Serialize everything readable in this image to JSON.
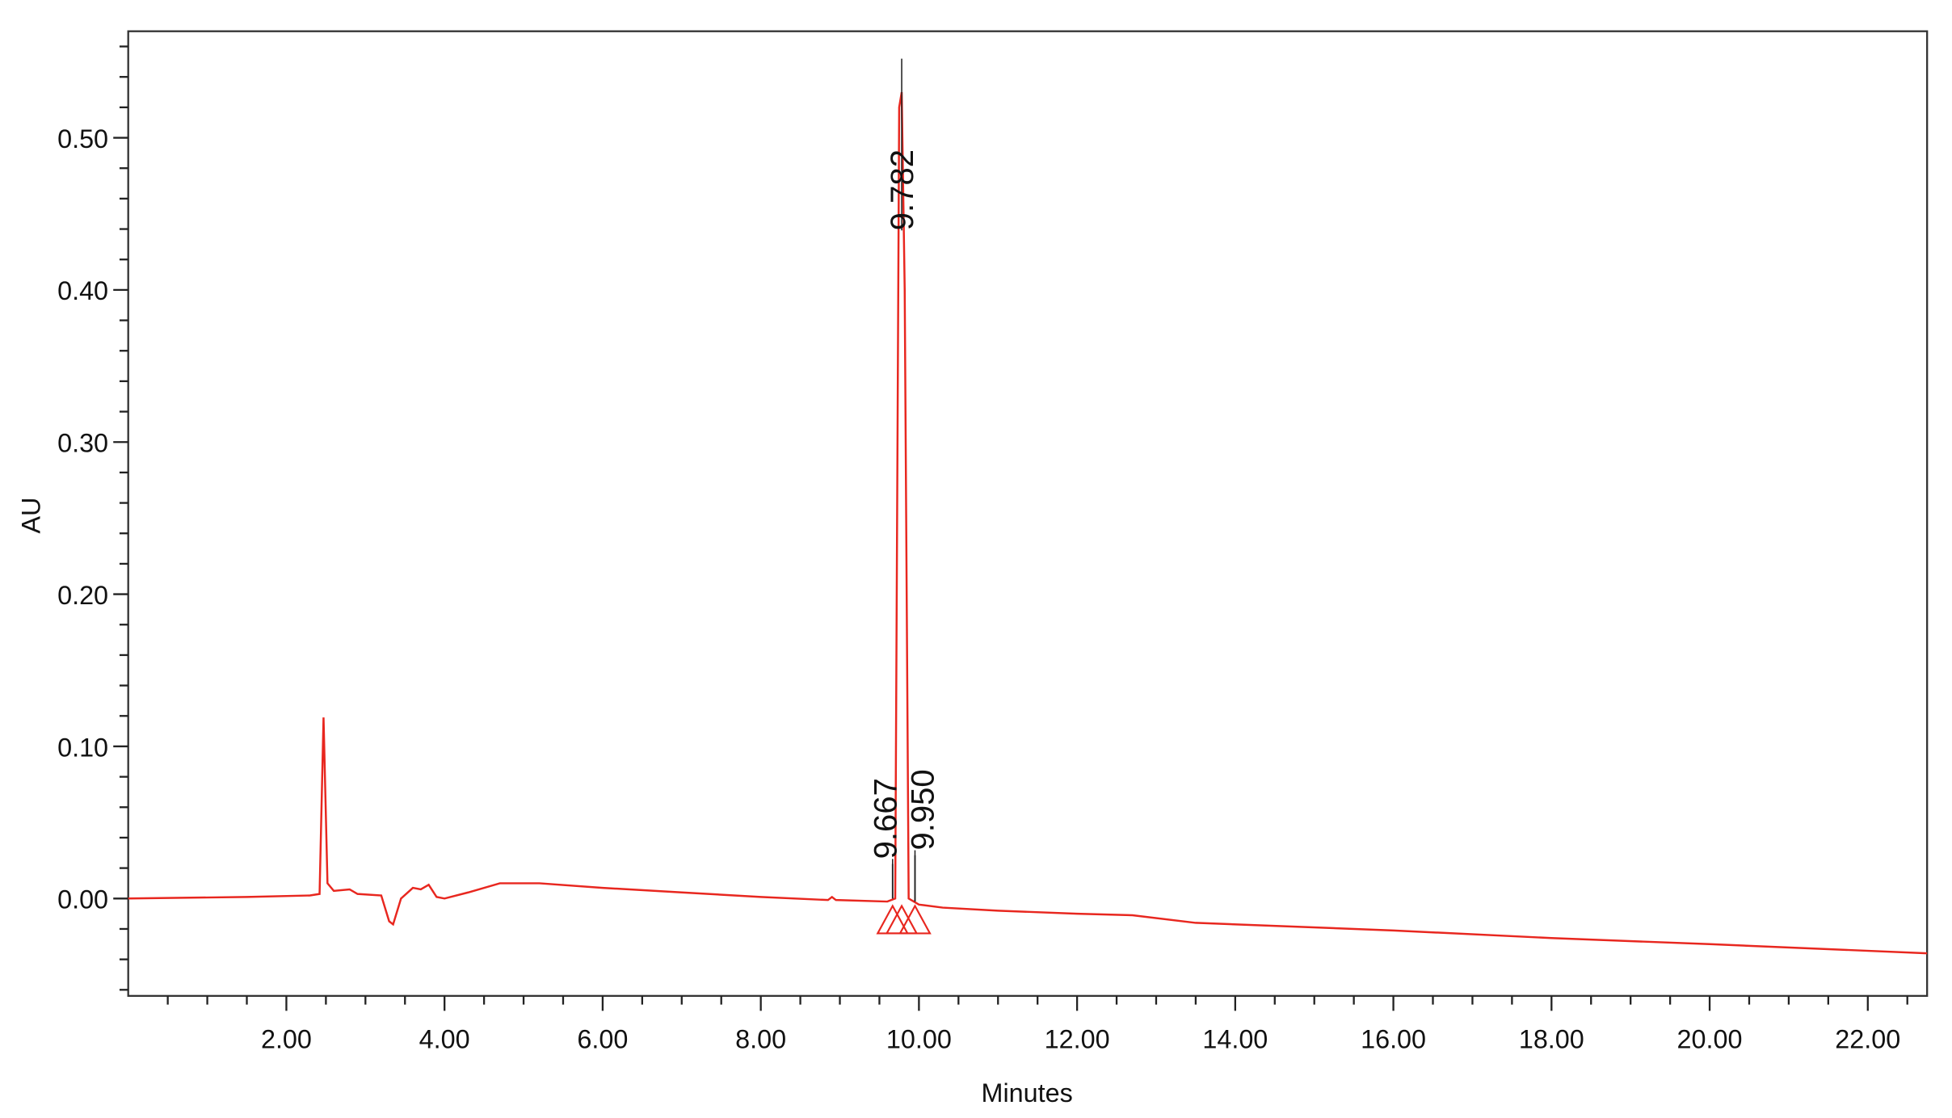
{
  "chart_data": {
    "type": "line",
    "xlabel": "Minutes",
    "ylabel": "AU",
    "xlim": [
      0,
      22.75
    ],
    "ylim": [
      -0.064,
      0.57
    ],
    "xticks": [
      {
        "value": 2,
        "label": "2.00"
      },
      {
        "value": 4,
        "label": "4.00"
      },
      {
        "value": 6,
        "label": "6.00"
      },
      {
        "value": 8,
        "label": "8.00"
      },
      {
        "value": 10,
        "label": "10.00"
      },
      {
        "value": 12,
        "label": "12.00"
      },
      {
        "value": 14,
        "label": "14.00"
      },
      {
        "value": 16,
        "label": "16.00"
      },
      {
        "value": 18,
        "label": "18.00"
      },
      {
        "value": 20,
        "label": "20.00"
      },
      {
        "value": 22,
        "label": "22.00"
      }
    ],
    "x_minor_ticks": [
      0.5,
      1,
      1.5,
      2.5,
      3,
      3.5,
      4.5,
      5,
      5.5,
      6.5,
      7,
      7.5,
      8.5,
      9,
      9.5,
      10.5,
      11,
      11.5,
      12.5,
      13,
      13.5,
      14.5,
      15,
      15.5,
      16.5,
      17,
      17.5,
      18.5,
      19,
      19.5,
      20.5,
      21,
      21.5,
      22.5
    ],
    "yticks": [
      {
        "value": 0,
        "label": "0.00"
      },
      {
        "value": 0.1,
        "label": "0.10"
      },
      {
        "value": 0.2,
        "label": "0.20"
      },
      {
        "value": 0.3,
        "label": "0.30"
      },
      {
        "value": 0.4,
        "label": "0.40"
      },
      {
        "value": 0.5,
        "label": "0.50"
      }
    ],
    "y_minor_ticks": [
      -0.06,
      -0.04,
      -0.02,
      0.02,
      0.04,
      0.06,
      0.08,
      0.12,
      0.14,
      0.16,
      0.18,
      0.22,
      0.24,
      0.26,
      0.28,
      0.32,
      0.34,
      0.36,
      0.38,
      0.42,
      0.44,
      0.46,
      0.48,
      0.52,
      0.54,
      0.56
    ],
    "series": [
      {
        "color": "#e8271f",
        "x": [
          0,
          1.5,
          2.3,
          2.42,
          2.47,
          2.52,
          2.6,
          2.8,
          2.9,
          3.2,
          3.3,
          3.35,
          3.45,
          3.6,
          3.7,
          3.8,
          3.9,
          4.0,
          4.3,
          4.7,
          5.2,
          6,
          7,
          8,
          8.85,
          8.9,
          8.95,
          9.6,
          9.7,
          9.75,
          9.782,
          9.82,
          9.87,
          10,
          10.3,
          11,
          12,
          12.7,
          13.5,
          16,
          18,
          20,
          22.75
        ],
        "values": [
          0,
          0.001,
          0.002,
          0.003,
          0.119,
          0.01,
          0.005,
          0.006,
          0.003,
          0.002,
          -0.015,
          -0.017,
          0,
          0.007,
          0.006,
          0.009,
          0.001,
          0,
          0.004,
          0.01,
          0.01,
          0.007,
          0.004,
          0.001,
          -0.001,
          0.001,
          -0.001,
          -0.002,
          0,
          0.52,
          0.53,
          0.4,
          0,
          -0.004,
          -0.006,
          -0.008,
          -0.01,
          -0.011,
          -0.016,
          -0.021,
          -0.026,
          -0.03,
          -0.036
        ]
      }
    ],
    "peaks": [
      {
        "value": 9.667,
        "label": "9.667",
        "height": 0.0
      },
      {
        "value": 9.782,
        "label": "9.782",
        "height": 0.552
      },
      {
        "value": 9.95,
        "label": "9.950",
        "height": -0.002
      }
    ]
  }
}
